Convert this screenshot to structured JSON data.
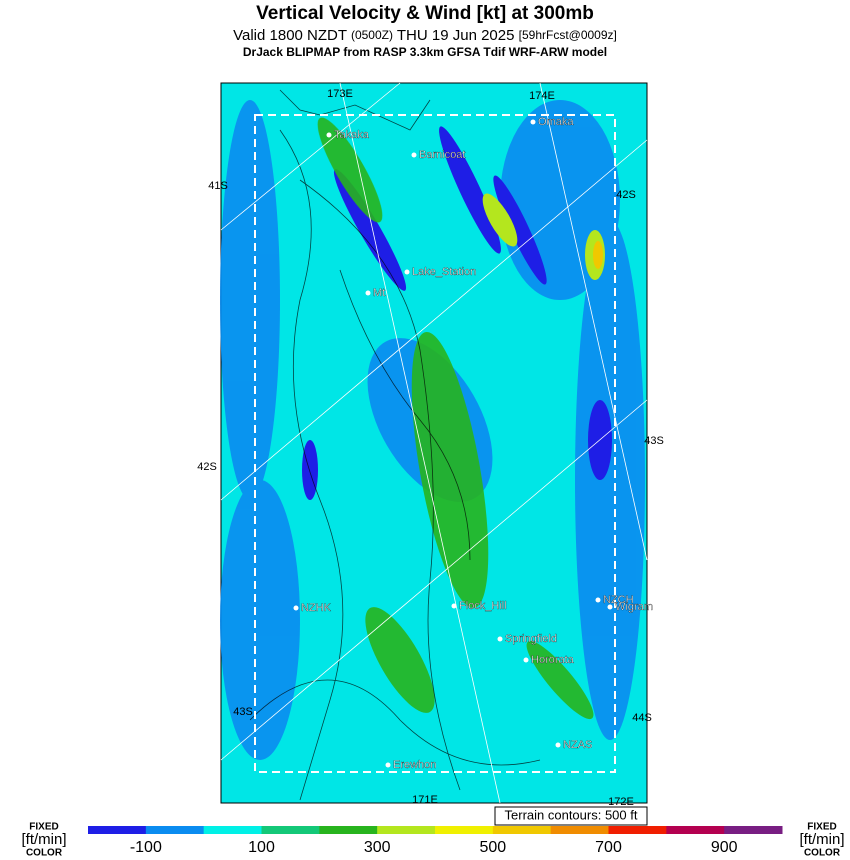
{
  "header": {
    "title": "Vertical Velocity & Wind [kt] at 300mb",
    "subtitle_parts": [
      "Valid 1800 NZDT",
      "(0500Z)",
      "THU 19 Jun 2025",
      "[59hrFcst@0009z]"
    ],
    "model": "DrJack BLIPMAP from RASP 3.3km GFSA Tdif WRF-ARW model"
  },
  "map": {
    "grid_labels": [
      "173E",
      "174E",
      "41S",
      "42S",
      "43S",
      "42S",
      "43S",
      "44S",
      "171E",
      "172E"
    ],
    "places": [
      "Takaka",
      "Barnicoat",
      "Omaka",
      "Lake_Station",
      "Mt",
      "NZHK",
      "Flock_Hill",
      "NZCH",
      "Wigram",
      "Springfield",
      "Hororata",
      "NZAS",
      "Erewhon"
    ],
    "terrain_note": "Terrain contours: 500 ft"
  },
  "colorbar": {
    "left_label": [
      "FIXED",
      "[ft/min]",
      "COLOR"
    ],
    "right_label": [
      "FIXED",
      "[ft/min]",
      "COLOR"
    ],
    "lim": [
      -200,
      1000
    ],
    "ticks": [
      -100,
      100,
      300,
      500,
      700,
      900
    ],
    "colors": [
      "#1e1ee6",
      "#0a8cf0",
      "#00f0e6",
      "#14c878",
      "#28b41e",
      "#b4e61e",
      "#f0f000",
      "#f0c800",
      "#f08c00",
      "#f01e00",
      "#b40050",
      "#781e82"
    ]
  }
}
